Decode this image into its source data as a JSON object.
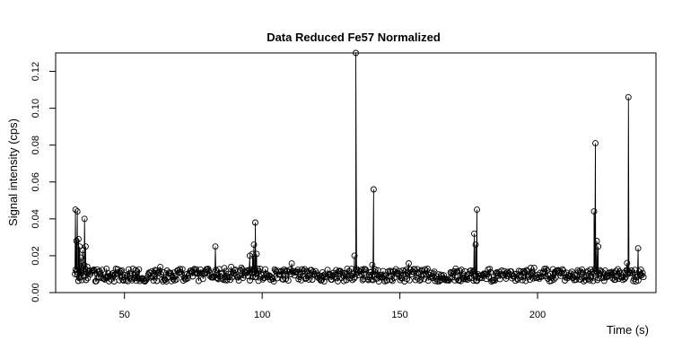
{
  "chart_data": {
    "type": "line",
    "title": "Data Reduced Fe57 Normalized",
    "xlabel": "Time (s)",
    "ylabel": "Signal intensity (cps)",
    "xlim": [
      25,
      243
    ],
    "ylim": [
      0,
      0.13
    ],
    "x_ticks": [
      50,
      100,
      150,
      200
    ],
    "x_tick_labels": [
      "50",
      "100",
      "150",
      "200"
    ],
    "y_ticks": [
      0,
      0.02,
      0.04,
      0.06,
      0.08,
      0.1,
      0.12
    ],
    "y_tick_labels": [
      "0.00",
      "0.02",
      "0.04",
      "0.06",
      "0.08",
      "0.10",
      "0.12"
    ],
    "grid": false,
    "legend": "none",
    "series": [
      {
        "style": "points-and-spikes",
        "x_start": 32,
        "x_step": 0.31,
        "baseline": 0.0095,
        "noise": 0.0035,
        "peaks": [
          {
            "x": 32.2,
            "y": 0.045
          },
          {
            "x": 32.6,
            "y": 0.028
          },
          {
            "x": 32.9,
            "y": 0.044
          },
          {
            "x": 33.3,
            "y": 0.029
          },
          {
            "x": 33.7,
            "y": 0.025
          },
          {
            "x": 34.2,
            "y": 0.019
          },
          {
            "x": 34.8,
            "y": 0.023
          },
          {
            "x": 35.5,
            "y": 0.04
          },
          {
            "x": 35.9,
            "y": 0.025
          },
          {
            "x": 36.5,
            "y": 0.014
          },
          {
            "x": 83.0,
            "y": 0.025
          },
          {
            "x": 95.5,
            "y": 0.02
          },
          {
            "x": 96.5,
            "y": 0.021
          },
          {
            "x": 97.0,
            "y": 0.026
          },
          {
            "x": 97.5,
            "y": 0.038
          },
          {
            "x": 98.0,
            "y": 0.021
          },
          {
            "x": 134.0,
            "y": 0.13
          },
          {
            "x": 133.5,
            "y": 0.02
          },
          {
            "x": 140.5,
            "y": 0.056
          },
          {
            "x": 140.0,
            "y": 0.015
          },
          {
            "x": 177.5,
            "y": 0.026
          },
          {
            "x": 178.0,
            "y": 0.045
          },
          {
            "x": 177.0,
            "y": 0.032
          },
          {
            "x": 220.5,
            "y": 0.044
          },
          {
            "x": 221.0,
            "y": 0.081
          },
          {
            "x": 221.5,
            "y": 0.028
          },
          {
            "x": 222.0,
            "y": 0.025
          },
          {
            "x": 233.0,
            "y": 0.106
          },
          {
            "x": 232.5,
            "y": 0.016
          },
          {
            "x": 236.5,
            "y": 0.024
          }
        ]
      }
    ]
  }
}
